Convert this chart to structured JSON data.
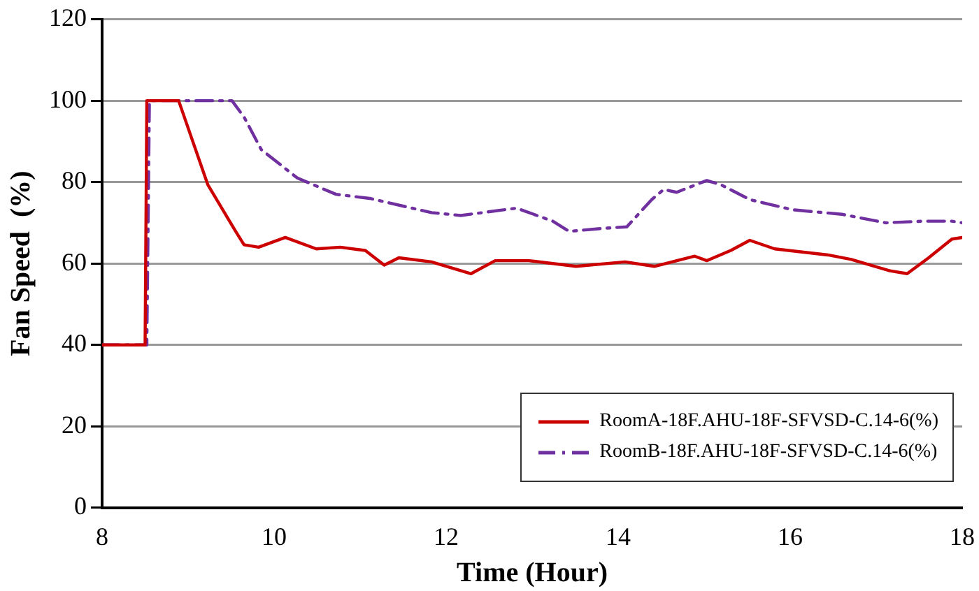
{
  "chart_data": {
    "type": "line",
    "xlabel": "Time (Hour)",
    "ylabel": "Fan Speed  (%)",
    "xlim": [
      8,
      18
    ],
    "xticks": [
      8,
      10,
      12,
      14,
      16,
      18
    ],
    "ylim": [
      0,
      120
    ],
    "yticks": [
      0,
      20,
      40,
      60,
      80,
      100,
      120
    ],
    "grid": "y",
    "legend": "bottom right",
    "marker": "none",
    "series": [
      {
        "name": "RoomA-18F.AHU-18F-SFVSD-C.14-6(%)",
        "color": "#cc0000",
        "line_style": "solid",
        "x": [
          8,
          8.5,
          8.52,
          8.89,
          9.23,
          9.55,
          9.65,
          9.82,
          10.13,
          10.49,
          10.77,
          11.06,
          11.28,
          11.45,
          11.83,
          12.29,
          12.57,
          12.96,
          13.51,
          14.08,
          14.42,
          14.89,
          15.03,
          15.31,
          15.53,
          15.82,
          16.44,
          16.71,
          17.16,
          17.36,
          17.61,
          17.88,
          18
        ],
        "values": [
          40,
          40,
          100,
          100,
          79.3,
          68,
          64.6,
          64,
          66.4,
          63.6,
          64,
          63.2,
          59.6,
          61.4,
          60.4,
          57.5,
          60.7,
          60.7,
          59.3,
          60.4,
          59.3,
          61.8,
          60.7,
          63.2,
          65.7,
          63.6,
          62.1,
          61,
          58.2,
          57.5,
          61.4,
          66,
          66.4
        ]
      },
      {
        "name": "RoomB-18F.AHU-18F-SFVSD-C.14-6(%)",
        "color": "#7030a0",
        "line_style": "dashdot",
        "x": [
          8,
          8.52,
          8.55,
          9.51,
          9.65,
          9.85,
          10.27,
          10.72,
          11.11,
          11.83,
          12.17,
          12.82,
          13.24,
          13.43,
          13.8,
          14.1,
          14.39,
          14.53,
          14.68,
          15.03,
          15.2,
          15.53,
          16.03,
          16.6,
          17.11,
          17.55,
          17.88,
          18
        ],
        "values": [
          40,
          40,
          100,
          100,
          96,
          88,
          81,
          77,
          76,
          72.5,
          71.8,
          73.6,
          70.4,
          67.9,
          68.6,
          69,
          75.7,
          78.2,
          77.5,
          80.4,
          79.3,
          75.7,
          73.2,
          72.1,
          70,
          70.4,
          70.4,
          70
        ]
      }
    ]
  }
}
